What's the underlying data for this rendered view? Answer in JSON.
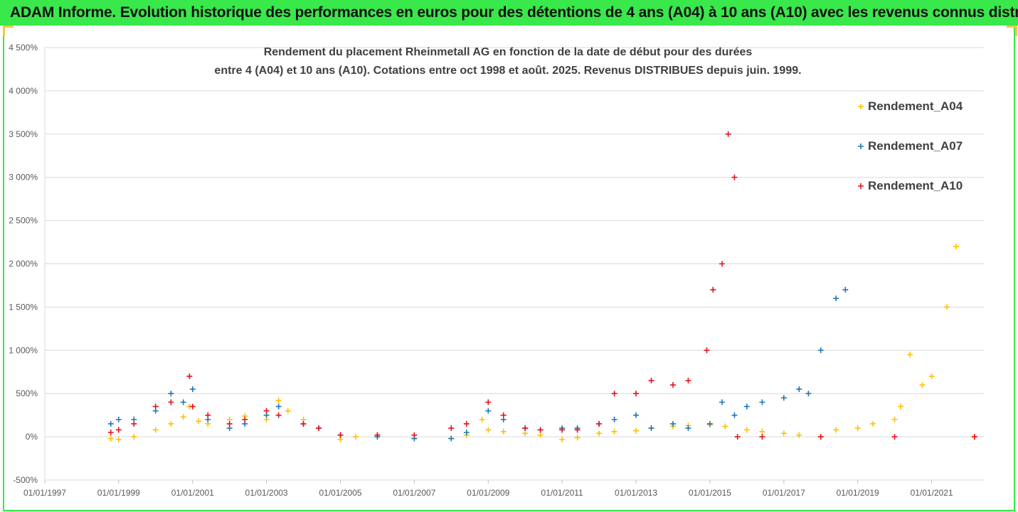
{
  "banner": {
    "text": "ADAM Informe. Evolution historique des performances en euros pour des détentions de 4 ans (A04) à 10 ans (A10) avec les revenus connus distribués"
  },
  "chart_data": {
    "type": "scatter",
    "title_line1": "Rendement du placement Rheinmetall AG en fonction de la date de début pour des durées",
    "title_line2": "entre 4 (A04) et 10 ans (A10). Cotations entre oct 1998 et août. 2025. Revenus DISTRIBUES depuis juin. 1999.",
    "xlabel": "",
    "ylabel": "",
    "x_tick_labels": [
      "01/01/1997",
      "01/01/1999",
      "01/01/2001",
      "01/01/2003",
      "01/01/2005",
      "01/01/2007",
      "01/01/2009",
      "01/01/2011",
      "01/01/2013",
      "01/01/2015",
      "01/01/2017",
      "01/01/2019",
      "01/01/2021"
    ],
    "y_tick_labels": [
      "-500%",
      "0%",
      "500%",
      "1 000%",
      "1 500%",
      "2 000%",
      "2 500%",
      "3 000%",
      "3 500%",
      "4 000%",
      "4 500%"
    ],
    "xlim": [
      "1997-01-01",
      "2022-06-01"
    ],
    "ylim": [
      -500,
      4500
    ],
    "grid": true,
    "marker": "+",
    "legend_position": "top-right",
    "series": [
      {
        "name": "Rendement_A04",
        "color": "#FFC000",
        "x": [
          "1998-10-15",
          "1999-01-01",
          "1999-06-01",
          "2000-01-01",
          "2000-06-01",
          "2000-10-01",
          "2000-12-01",
          "2001-03-01",
          "2001-06-01",
          "2002-01-01",
          "2002-06-01",
          "2003-01-01",
          "2003-05-01",
          "2003-08-01",
          "2004-01-01",
          "2004-06-01",
          "2005-01-01",
          "2005-06-01",
          "2006-01-01",
          "2007-01-01",
          "2008-01-01",
          "2008-06-01",
          "2008-11-01",
          "2009-01-01",
          "2009-06-01",
          "2010-01-01",
          "2010-06-01",
          "2011-01-01",
          "2011-06-01",
          "2012-01-01",
          "2012-06-01",
          "2013-01-01",
          "2013-06-01",
          "2014-01-01",
          "2014-06-01",
          "2015-01-01",
          "2015-06-01",
          "2016-01-01",
          "2016-06-01",
          "2017-01-01",
          "2017-06-01",
          "2018-01-01",
          "2018-06-01",
          "2019-01-01",
          "2019-06-01",
          "2020-01-01",
          "2020-03-01",
          "2020-06-01",
          "2020-10-01",
          "2021-01-01",
          "2021-06-01",
          "2021-09-01",
          "2022-03-01"
        ],
        "y": [
          -20,
          -30,
          0,
          80,
          150,
          230,
          350,
          180,
          150,
          200,
          240,
          200,
          420,
          300,
          200,
          100,
          -30,
          0,
          20,
          -20,
          -20,
          20,
          200,
          80,
          60,
          40,
          20,
          -30,
          -10,
          40,
          60,
          70,
          100,
          120,
          130,
          140,
          120,
          80,
          60,
          40,
          20,
          0,
          80,
          100,
          150,
          200,
          350,
          950,
          600,
          700,
          1500,
          2200,
          0
        ]
      },
      {
        "name": "Rendement_A07",
        "color": "#1F77B4",
        "x": [
          "1998-10-15",
          "1999-01-01",
          "1999-06-01",
          "2000-01-01",
          "2000-06-01",
          "2000-10-01",
          "2001-01-01",
          "2001-06-01",
          "2002-01-01",
          "2002-06-01",
          "2003-01-01",
          "2003-05-01",
          "2004-01-01",
          "2004-06-01",
          "2005-01-01",
          "2006-01-01",
          "2007-01-01",
          "2008-01-01",
          "2008-06-01",
          "2009-01-01",
          "2009-06-01",
          "2010-01-01",
          "2010-06-01",
          "2011-01-01",
          "2011-06-01",
          "2012-01-01",
          "2012-06-01",
          "2013-01-01",
          "2013-06-01",
          "2014-01-01",
          "2014-06-01",
          "2015-01-01",
          "2015-05-01",
          "2015-09-01",
          "2016-01-01",
          "2016-06-01",
          "2017-01-01",
          "2017-06-01",
          "2017-09-01",
          "2018-01-01",
          "2018-06-01",
          "2018-09-01"
        ],
        "y": [
          150,
          200,
          200,
          300,
          500,
          400,
          550,
          200,
          100,
          150,
          250,
          350,
          150,
          100,
          20,
          0,
          -20,
          -20,
          50,
          300,
          200,
          100,
          80,
          100,
          100,
          150,
          200,
          250,
          100,
          150,
          100,
          150,
          400,
          250,
          350,
          400,
          450,
          550,
          500,
          1000,
          1600,
          1700
        ]
      },
      {
        "name": "Rendement_A10",
        "color": "#E8101C",
        "x": [
          "1998-10-15",
          "1999-01-01",
          "1999-06-01",
          "2000-01-01",
          "2000-06-01",
          "2000-12-01",
          "2001-01-01",
          "2001-06-01",
          "2002-01-01",
          "2002-06-01",
          "2003-01-01",
          "2003-05-01",
          "2004-01-01",
          "2004-06-01",
          "2005-01-01",
          "2006-01-01",
          "2007-01-01",
          "2008-01-01",
          "2008-06-01",
          "2009-01-01",
          "2009-06-01",
          "2010-01-01",
          "2010-06-01",
          "2011-01-01",
          "2011-06-01",
          "2012-01-01",
          "2012-06-01",
          "2013-01-01",
          "2013-06-01",
          "2014-01-01",
          "2014-06-01",
          "2014-12-01",
          "2015-02-01",
          "2015-05-01",
          "2015-07-01",
          "2015-09-01",
          "2015-10-01",
          "2016-06-01",
          "2018-01-01",
          "2020-01-01",
          "2022-03-01"
        ],
        "y": [
          50,
          80,
          150,
          350,
          400,
          700,
          350,
          250,
          150,
          200,
          300,
          250,
          150,
          100,
          20,
          20,
          20,
          100,
          150,
          400,
          250,
          100,
          80,
          80,
          80,
          150,
          500,
          500,
          650,
          600,
          650,
          1000,
          1700,
          2000,
          3500,
          3000,
          0,
          0,
          0,
          0,
          0
        ]
      }
    ]
  }
}
